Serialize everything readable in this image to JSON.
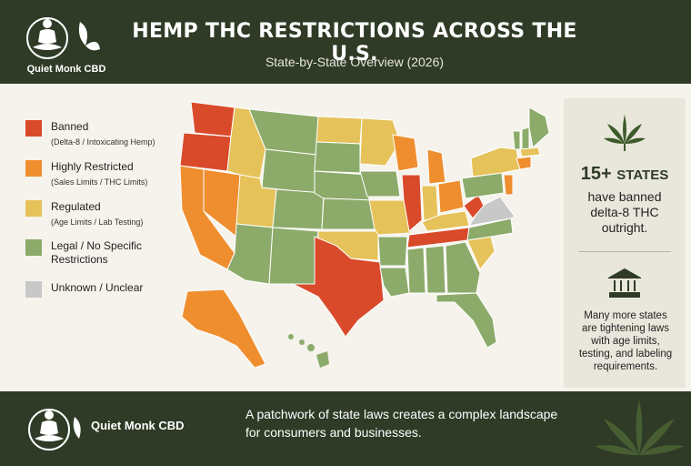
{
  "header": {
    "brand": "Quiet Monk CBD",
    "title": "HEMP THC RESTRICTIONS ACROSS THE U.S.",
    "subtitle": "State-by-State Overview (2026)"
  },
  "legend": [
    {
      "label": "Banned",
      "sub": "(Delta-8 / Intoxicating Hemp)",
      "color": "#d94a2b"
    },
    {
      "label": "Highly Restricted",
      "sub": "(Sales Limits / THC Limits)",
      "color": "#ef8e2f"
    },
    {
      "label": "Regulated",
      "sub": "(Age Limits / Lab Testing)",
      "color": "#e5c25a"
    },
    {
      "label": "Legal / No Specific Restrictions",
      "sub": "",
      "color": "#8cab6a"
    },
    {
      "label": "Unknown / Unclear",
      "sub": "",
      "color": "#c8c8c8"
    }
  ],
  "panel": {
    "stat_number": "15+",
    "stat_unit": "STATES",
    "stat_lines": [
      "have banned",
      "delta-8 THC",
      "outright."
    ],
    "note_lines": [
      "Many more states",
      "are tightening laws",
      "with age limits,",
      "testing, and labeling",
      "requirements."
    ],
    "icons": [
      "cannabis-leaf-icon",
      "courthouse-icon"
    ]
  },
  "footer": {
    "brand": "Quiet Monk CBD",
    "lines": [
      "A patchwork of state laws creates a complex landscape",
      "for consumers and businesses."
    ]
  }
}
